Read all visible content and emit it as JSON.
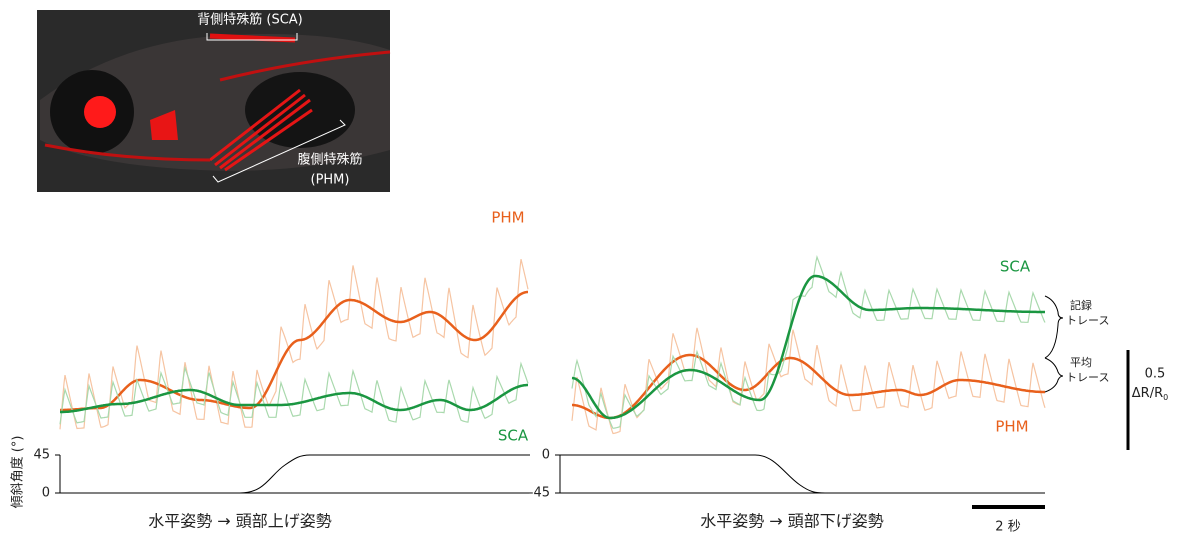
{
  "image": {
    "dorsal_label": "背側特殊筋 (SCA)",
    "ventral_label_line1": "腹側特殊筋",
    "ventral_label_line2": "(PHM)"
  },
  "y_axis_label": "傾斜角度 (°)",
  "panels": [
    {
      "top_label": "PHM",
      "bottom_label": "SCA",
      "tilt_ticks": [
        45,
        0
      ],
      "caption": "水平姿勢 → 頭部上げ姿勢"
    },
    {
      "top_label": "SCA",
      "bottom_label": "PHM",
      "tilt_ticks": [
        0,
        -45
      ],
      "caption": "水平姿勢 → 頭部下げ姿勢"
    }
  ],
  "legend": {
    "recorded_line1": "記録",
    "recorded_line2": "トレース",
    "mean_line1": "平均",
    "mean_line2": "トレース"
  },
  "scale": {
    "amplitude": "0.5",
    "unit": "ΔR/R",
    "unit_subscript": "0",
    "time": "2 秒"
  }
}
